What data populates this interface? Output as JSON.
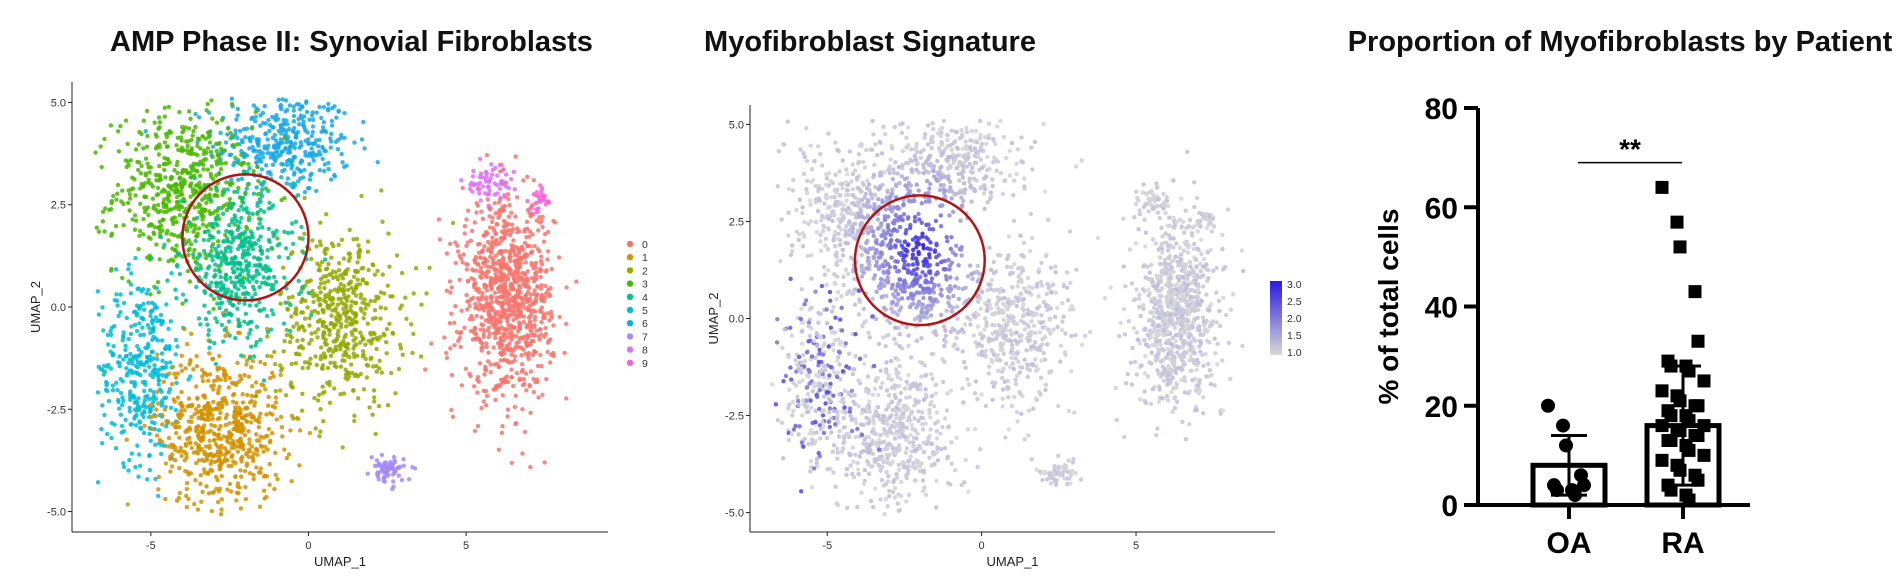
{
  "chart_data": [
    {
      "type": "scatter",
      "title": "AMP Phase II: Synovial Fibroblasts",
      "xlabel": "UMAP_1",
      "ylabel": "UMAP_2",
      "xticks": [
        "-5",
        "0",
        "5"
      ],
      "yticks": [
        "5.0",
        "2.5",
        "0.0",
        "-2.5",
        "-5.0"
      ],
      "xlim": [
        -7.5,
        9.5
      ],
      "ylim": [
        -5.5,
        5.5
      ],
      "legend_position": "right",
      "legend_title": "",
      "clusters": [
        {
          "name": "0",
          "color": "#f8766d",
          "center": [
            6.3,
            0.2
          ],
          "spread": [
            1.6,
            2.6
          ],
          "n": 950
        },
        {
          "name": "1",
          "color": "#d39200",
          "center": [
            -2.8,
            -3.0
          ],
          "spread": [
            2.2,
            2.2
          ],
          "n": 600
        },
        {
          "name": "2",
          "color": "#93aa00",
          "center": [
            1.0,
            -0.3
          ],
          "spread": [
            2.2,
            2.4
          ],
          "n": 520
        },
        {
          "name": "3",
          "color": "#4ab800",
          "center": [
            -4.0,
            2.8
          ],
          "spread": [
            2.4,
            2.2
          ],
          "n": 560
        },
        {
          "name": "4",
          "color": "#00c08b",
          "center": [
            -2.2,
            1.0
          ],
          "spread": [
            2.0,
            2.0
          ],
          "n": 440
        },
        {
          "name": "5",
          "color": "#00bcd8",
          "center": [
            -5.3,
            -1.5
          ],
          "spread": [
            1.5,
            2.6
          ],
          "n": 360
        },
        {
          "name": "6",
          "color": "#17a8e6",
          "center": [
            -0.8,
            4.0
          ],
          "spread": [
            2.4,
            1.4
          ],
          "n": 380
        },
        {
          "name": "7",
          "color": "#a58aff",
          "center": [
            2.5,
            -4.0
          ],
          "spread": [
            0.6,
            0.35
          ],
          "n": 70
        },
        {
          "name": "8",
          "color": "#df70f8",
          "center": [
            5.7,
            3.0
          ],
          "spread": [
            0.9,
            0.5
          ],
          "n": 60
        },
        {
          "name": "9",
          "color": "#fb61d7",
          "center": [
            7.3,
            2.6
          ],
          "spread": [
            0.35,
            0.35
          ],
          "n": 25
        }
      ],
      "highlight_circle": {
        "center": [
          -2.0,
          1.7
        ],
        "radius": 2.0,
        "color": "#b01515"
      }
    },
    {
      "type": "scatter",
      "title": "Myofibroblast Signature",
      "xlabel": "UMAP_1",
      "ylabel": "UMAP_2",
      "xticks": [
        "-5",
        "0",
        "5"
      ],
      "yticks": [
        "5.0",
        "2.5",
        "0.0",
        "-2.5",
        "-5.0"
      ],
      "xlim": [
        -7.5,
        9.5
      ],
      "ylim": [
        -5.5,
        5.5
      ],
      "color_scale": {
        "min": 1.0,
        "max": 3.0,
        "low_color": "#d9d9d9",
        "high_color": "#2a1ae0",
        "ticks": [
          "3.0",
          "2.5",
          "2.0",
          "1.5",
          "1.0"
        ]
      },
      "hotspot": {
        "center": [
          -2.0,
          1.8
        ],
        "radius": 1.8
      },
      "highlight_circle": {
        "center": [
          -2.0,
          1.5
        ],
        "radius": 2.1,
        "color": "#b01515"
      }
    },
    {
      "type": "bar",
      "title": "Proportion of Myofibroblasts by Patient",
      "ylabel": "% of total cells",
      "categories": [
        "OA",
        "RA"
      ],
      "values": [
        8,
        16
      ],
      "sd_upper": [
        14,
        28
      ],
      "sd_lower": [
        2,
        4
      ],
      "yticks": [
        "80",
        "60",
        "40",
        "20",
        "0"
      ],
      "ylim": [
        0,
        80
      ],
      "significance": "**",
      "points": {
        "OA": [
          20,
          16,
          12,
          6,
          4,
          4,
          3,
          3,
          2
        ],
        "RA": [
          64,
          57,
          52,
          43,
          33,
          29,
          28,
          28,
          27,
          25,
          23,
          22,
          21,
          20,
          20,
          19,
          18,
          18,
          17,
          16,
          16,
          15,
          15,
          14,
          14,
          13,
          13,
          12,
          11,
          10,
          9,
          8,
          7,
          6,
          5,
          4,
          3,
          2,
          1
        ]
      }
    }
  ]
}
